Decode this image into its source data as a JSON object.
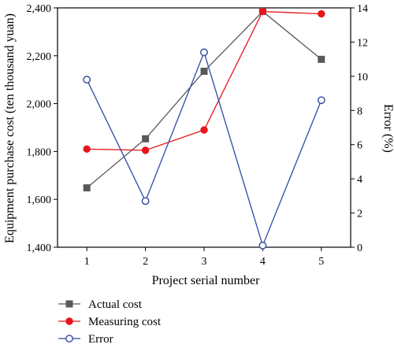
{
  "chart_data": {
    "type": "line",
    "x": [
      1,
      2,
      3,
      4,
      5
    ],
    "x_ticks": [
      "1",
      "2",
      "3",
      "4",
      "5"
    ],
    "xlabel": "Project serial number",
    "xlim": [
      0.5,
      5.5
    ],
    "ylabel": "Equipment purchase cost (ten thousand yuan)",
    "ylim": [
      1400,
      2400
    ],
    "y_ticks": [
      "1,400",
      "1,600",
      "1,800",
      "2,000",
      "2,200",
      "2,400"
    ],
    "y2label": "Error (%)",
    "y2lim": [
      0,
      14
    ],
    "y2_ticks": [
      "0",
      "2",
      "4",
      "6",
      "8",
      "10",
      "12",
      "14"
    ],
    "grid": false,
    "legend_position": "below plot, left",
    "series": [
      {
        "name": "Actual cost",
        "axis": "left",
        "values": [
          1648,
          1853,
          2135,
          2385,
          2185
        ],
        "color": "#595959",
        "marker": "square"
      },
      {
        "name": "Measuring cost",
        "axis": "left",
        "values": [
          1810,
          1805,
          1890,
          2385,
          2375
        ],
        "color": "#e8151c",
        "marker": "circle"
      },
      {
        "name": "Error",
        "axis": "right",
        "values": [
          9.8,
          2.7,
          11.4,
          0.1,
          8.6
        ],
        "color": "#2e4aa3",
        "marker": "open-circle"
      }
    ]
  }
}
